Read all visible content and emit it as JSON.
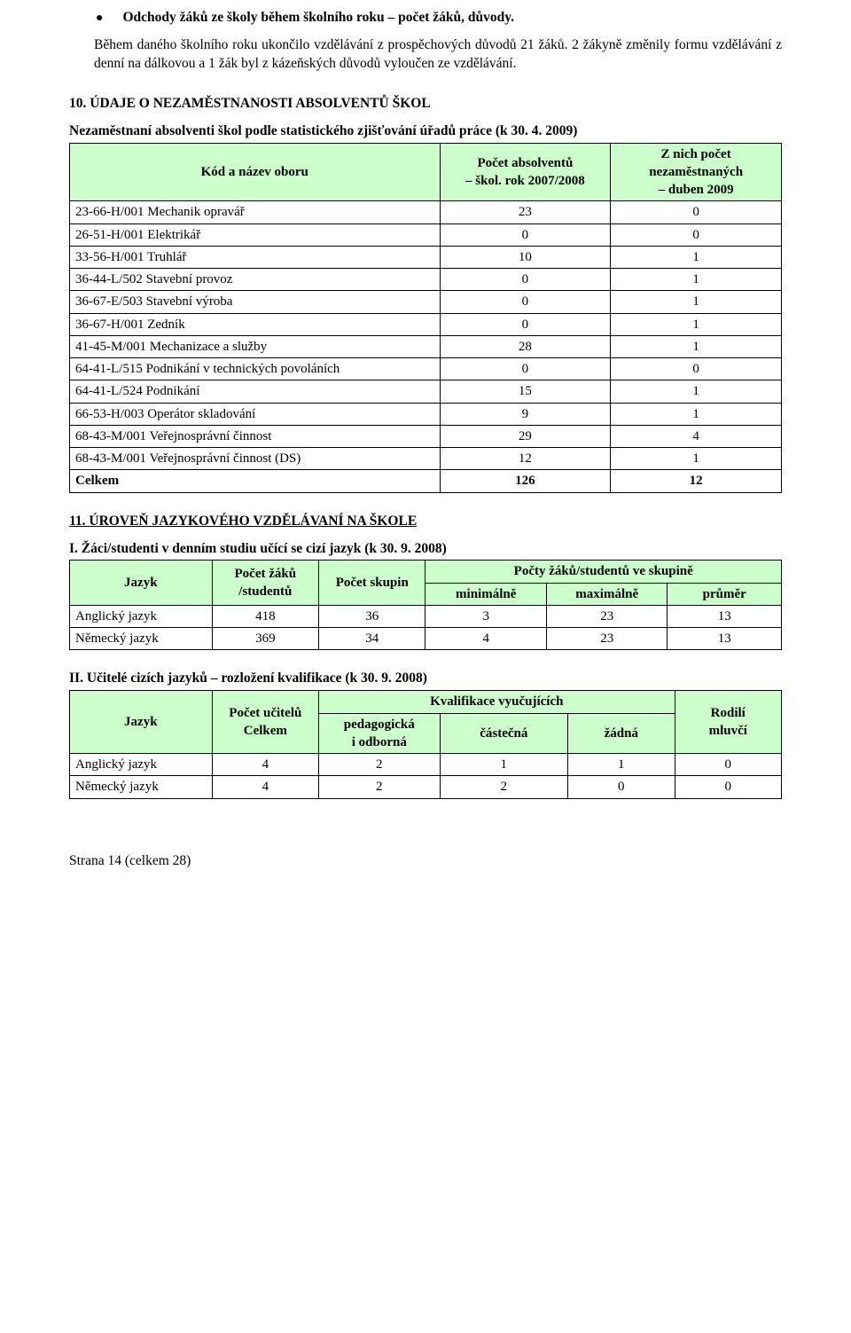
{
  "bullet": {
    "title": "Odchody žáků ze školy během školního roku – počet žáků, důvody."
  },
  "para": "Během daného školního roku ukončilo vzdělávání z prospěchových důvodů 21 žáků. 2 žákyně změnily formu vzdělávání z denní na dálkovou a 1 žák byl z kázeňských důvodů vyloučen ze vzdělávání.",
  "section10": {
    "heading": "10. ÚDAJE O NEZAMĚSTNANOSTI ABSOLVENTŮ ŠKOL",
    "tableTitle": "Nezaměstnaní absolventi škol podle statistického zjišťování úřadů práce (k 30. 4. 2009)",
    "head": {
      "kod": "Kód a název oboru",
      "abs1": "Počet absolventů",
      "abs2": "– škol. rok 2007/2008",
      "nez1": "Z nich počet",
      "nez2": "nezaměstnaných",
      "nez3": "– duben 2009"
    },
    "rows": [
      {
        "k": "23-66-H/001   Mechanik opravář",
        "a": "23",
        "n": "0"
      },
      {
        "k": "26-51-H/001   Elektrikář",
        "a": "0",
        "n": "0"
      },
      {
        "k": "33-56-H/001    Truhlář",
        "a": "10",
        "n": "1"
      },
      {
        "k": "36-44-L/502    Stavební provoz",
        "a": "0",
        "n": "1"
      },
      {
        "k": "36-67-E/503   Stavební výroba",
        "a": "0",
        "n": "1"
      },
      {
        "k": "36-67-H/001   Zedník",
        "a": "0",
        "n": "1"
      },
      {
        "k": "41-45-M/001  Mechanizace a služby",
        "a": "28",
        "n": "1"
      },
      {
        "k": "64-41-L/515   Podnikání v technických povoláních",
        "a": "0",
        "n": "0"
      },
      {
        "k": "64-41-L/524   Podnikání",
        "a": "15",
        "n": "1"
      },
      {
        "k": "66-53-H/003   Operátor skladování",
        "a": "9",
        "n": "1"
      },
      {
        "k": "68-43-M/001  Veřejnosprávní činnost",
        "a": "29",
        "n": "4"
      },
      {
        "k": "68-43-M/001  Veřejnosprávní činnost (DS)",
        "a": "12",
        "n": "1"
      }
    ],
    "total": {
      "k": "Celkem",
      "a": "126",
      "n": "12"
    }
  },
  "section11": {
    "heading": "11. ÚROVEŇ JAZYKOVÉHO VZDĚLÁVANÍ NA ŠKOLE",
    "t2Title": "I. Žáci/studenti v denním studiu učící se cizí jazyk (k 30. 9. 2008)",
    "t2Head": {
      "jazyk": "Jazyk",
      "pz1": "Počet žáků",
      "pz2": "/studentů",
      "ps": "Počet skupin",
      "sub": "Počty žáků/studentů ve skupině",
      "min": "minimálně",
      "max": "maximálně",
      "pr": "průměr"
    },
    "t2Rows": [
      {
        "j": "Anglický jazyk",
        "pz": "418",
        "ps": "36",
        "min": "3",
        "max": "23",
        "pr": "13"
      },
      {
        "j": "Německý jazyk",
        "pz": "369",
        "ps": "34",
        "min": "4",
        "max": "23",
        "pr": "13"
      }
    ],
    "t3Title": "II. Učitelé cizích jazyků – rozložení kvalifikace (k 30. 9. 2008)",
    "t3Head": {
      "jazyk": "Jazyk",
      "pu1": "Počet učitelů",
      "pu2": "Celkem",
      "kv": "Kvalifikace vyučujících",
      "kp1": "pedagogická",
      "kp2": "i odborná",
      "kc": "částečná",
      "kz": "žádná",
      "rm1": "Rodilí",
      "rm2": "mluvčí"
    },
    "t3Rows": [
      {
        "j": "Anglický jazyk",
        "pu": "4",
        "kp": "2",
        "kc": "1",
        "kz": "1",
        "rm": "0"
      },
      {
        "j": "Německý jazyk",
        "pu": "4",
        "kp": "2",
        "kc": "2",
        "kz": "0",
        "rm": "0"
      }
    ]
  },
  "footer": "Strana 14 (celkem 28)"
}
